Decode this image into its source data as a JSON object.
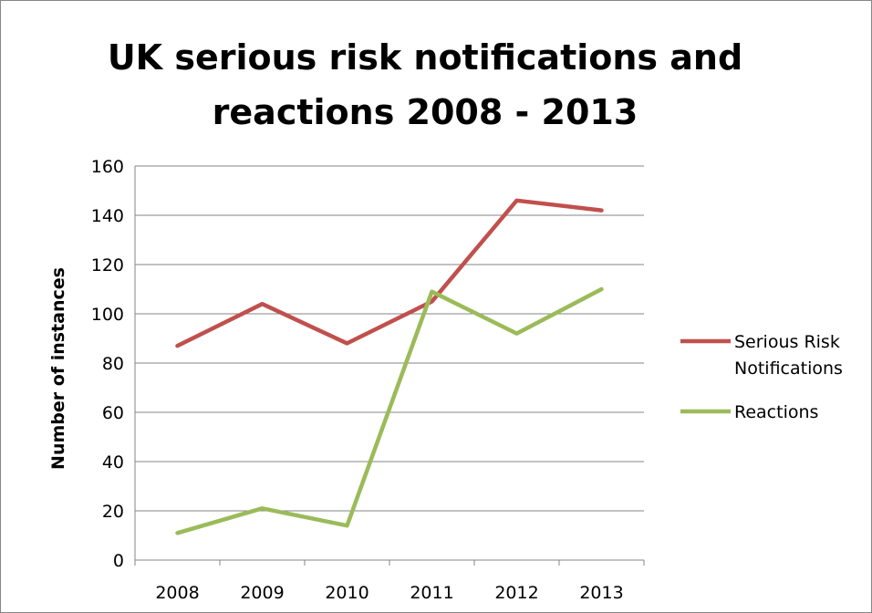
{
  "chart_data": {
    "type": "line",
    "title_lines": [
      "UK serious risk notifications and",
      "reactions 2008 - 2013"
    ],
    "xlabel": "",
    "ylabel": "Number of instances",
    "categories": [
      "2008",
      "2009",
      "2010",
      "2011",
      "2012",
      "2013"
    ],
    "ylim": [
      0,
      160
    ],
    "yticks": [
      0,
      20,
      40,
      60,
      80,
      100,
      120,
      140,
      160
    ],
    "grid": true,
    "legend_position": "right",
    "series": [
      {
        "name_lines": [
          "Serious Risk",
          "Notifications"
        ],
        "color": "#c0504d",
        "values": [
          87,
          104,
          88,
          105,
          146,
          142
        ]
      },
      {
        "name_lines": [
          "Reactions"
        ],
        "color": "#9bbb59",
        "values": [
          11,
          21,
          14,
          109,
          92,
          110
        ]
      }
    ]
  }
}
